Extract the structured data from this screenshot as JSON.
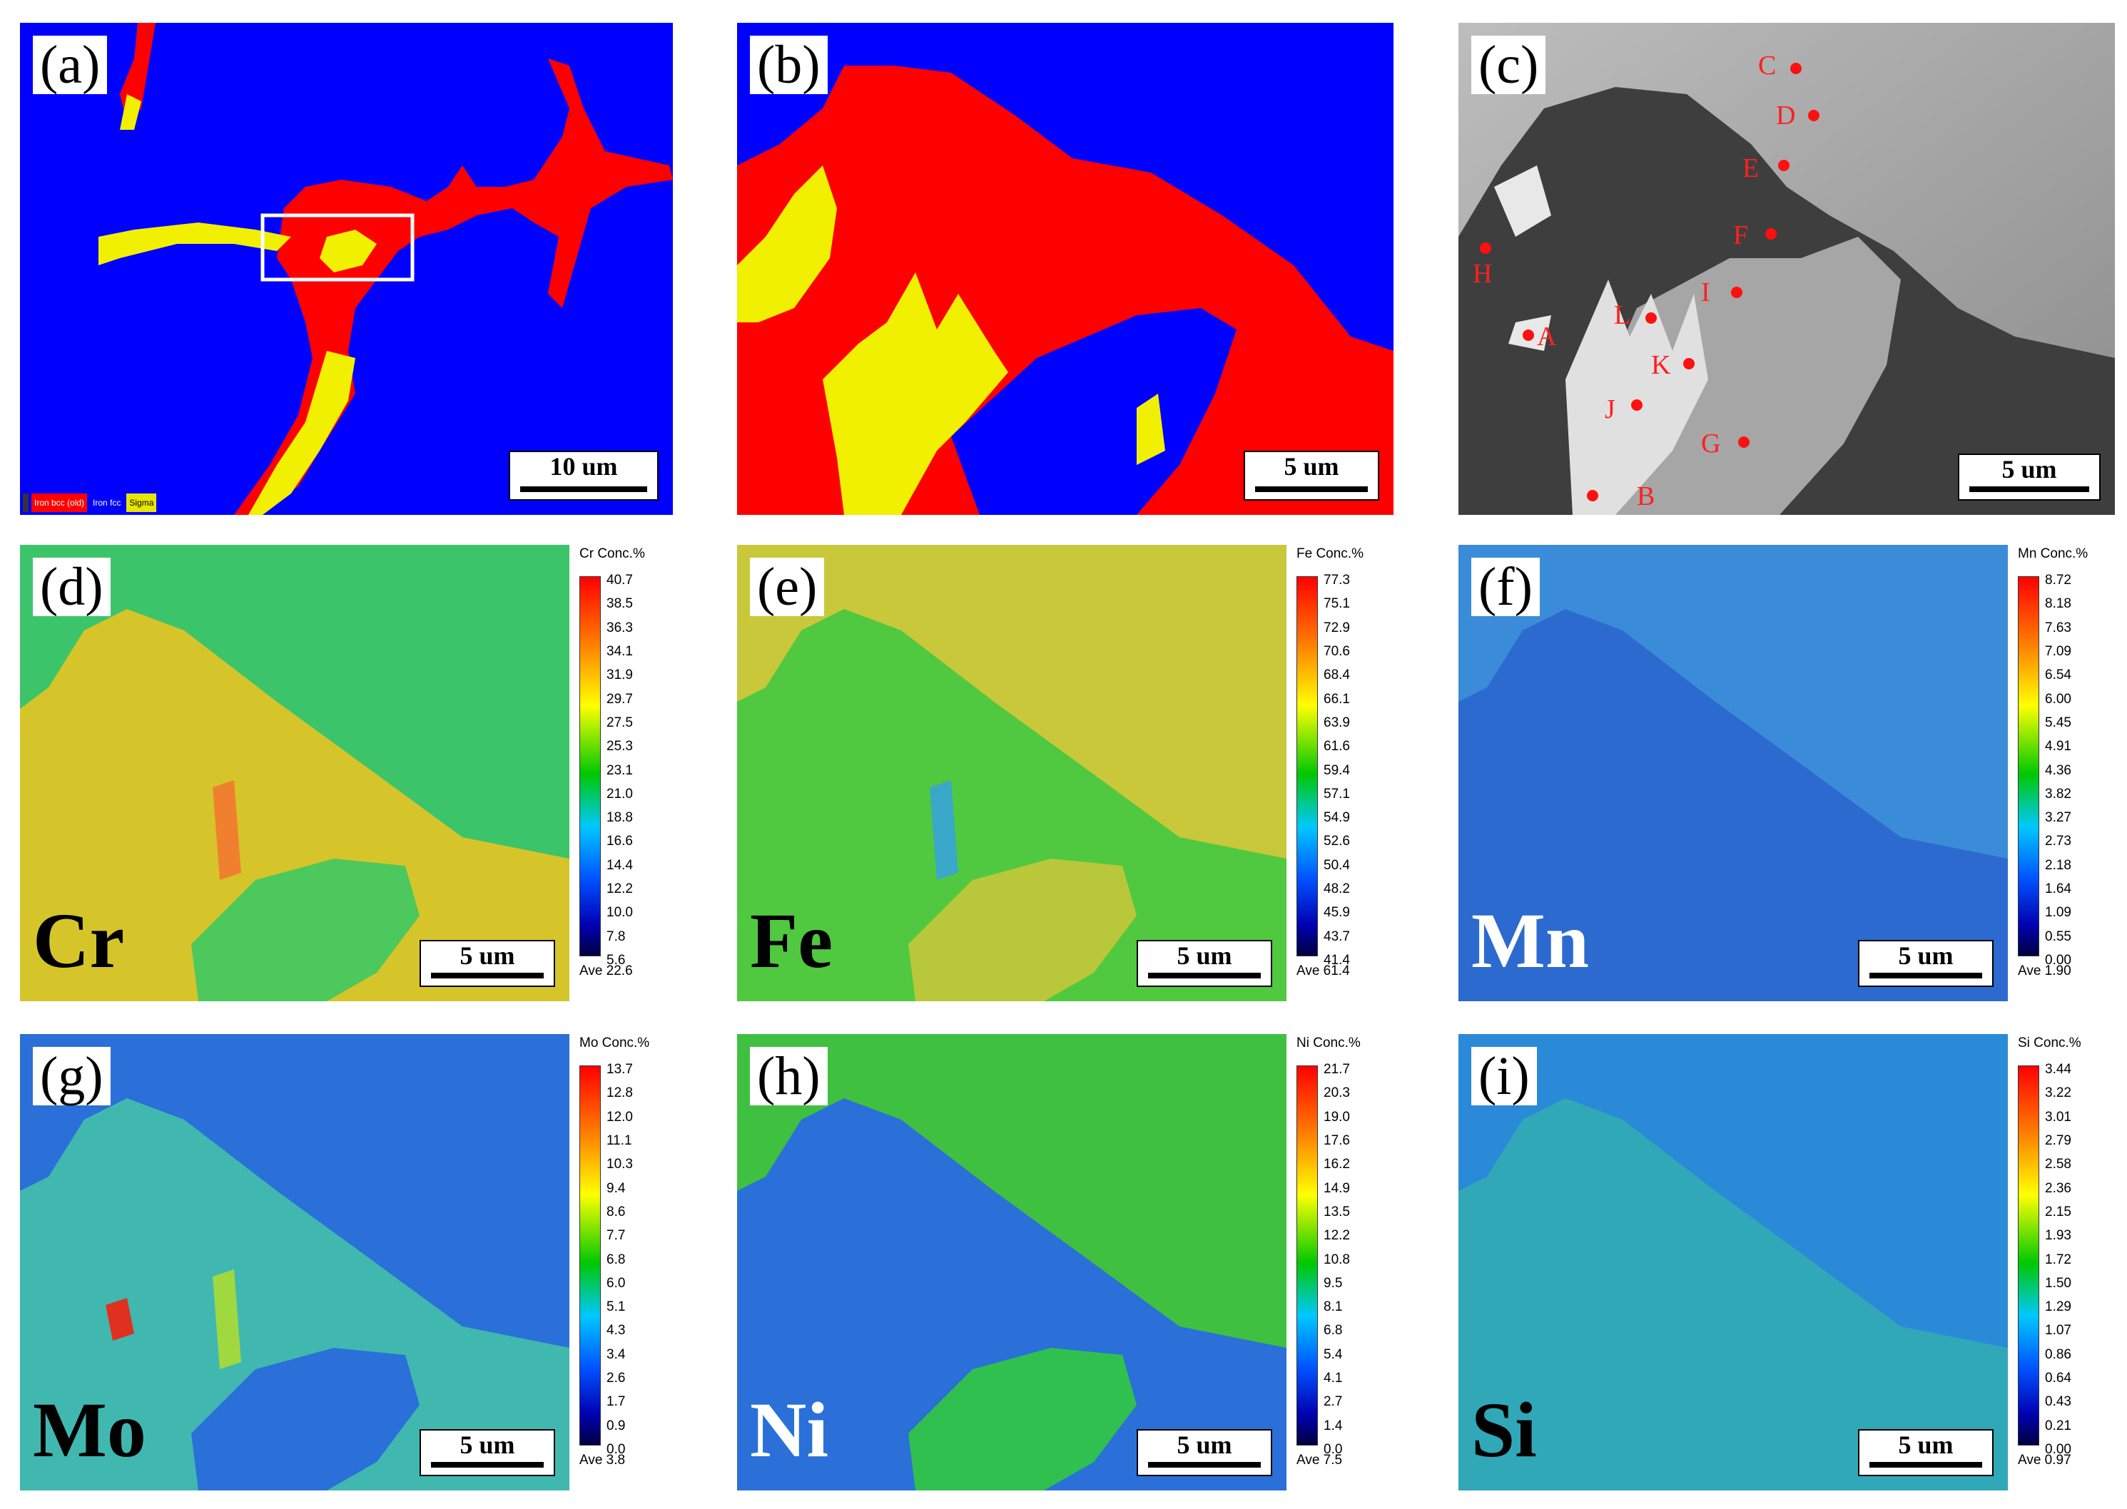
{
  "panels": {
    "a": {
      "letter": "(a)",
      "scale": "10 um",
      "legend": [
        {
          "label": "",
          "color": "#333333"
        },
        {
          "label": "Iron bcc (old)",
          "color": "#ff0000"
        },
        {
          "label": "Iron fcc",
          "color": "#0000ff"
        },
        {
          "label": "Sigma",
          "color": "#e6e600"
        }
      ]
    },
    "b": {
      "letter": "(b)",
      "scale": "5 um"
    },
    "c": {
      "letter": "(c)",
      "scale": "5 um",
      "points": [
        "C",
        "D",
        "E",
        "F",
        "H",
        "I",
        "L",
        "A",
        "K",
        "J",
        "G",
        "B"
      ]
    },
    "d": {
      "letter": "(d)",
      "scale": "5 um",
      "element": "Cr",
      "title": "Cr Conc.%",
      "ave": "Ave 22.6",
      "ticks": [
        "40.7",
        "38.5",
        "36.3",
        "34.1",
        "31.9",
        "29.7",
        "27.5",
        "25.3",
        "23.1",
        "21.0",
        "18.8",
        "16.6",
        "14.4",
        "12.2",
        "10.0",
        "7.8",
        "5.6"
      ]
    },
    "e": {
      "letter": "(e)",
      "scale": "5 um",
      "element": "Fe",
      "title": "Fe Conc.%",
      "ave": "Ave 61.4",
      "ticks": [
        "77.3",
        "75.1",
        "72.9",
        "70.6",
        "68.4",
        "66.1",
        "63.9",
        "61.6",
        "59.4",
        "57.1",
        "54.9",
        "52.6",
        "50.4",
        "48.2",
        "45.9",
        "43.7",
        "41.4"
      ]
    },
    "f": {
      "letter": "(f)",
      "scale": "5 um",
      "element": "Mn",
      "title": "Mn Conc.%",
      "ave": "Ave 1.90",
      "ticks": [
        "8.72",
        "8.18",
        "7.63",
        "7.09",
        "6.54",
        "6.00",
        "5.45",
        "4.91",
        "4.36",
        "3.82",
        "3.27",
        "2.73",
        "2.18",
        "1.64",
        "1.09",
        "0.55",
        "0.00"
      ]
    },
    "g": {
      "letter": "(g)",
      "scale": "5 um",
      "element": "Mo",
      "title": "Mo Conc.%",
      "ave": "Ave 3.8",
      "ticks": [
        "13.7",
        "12.8",
        "12.0",
        "11.1",
        "10.3",
        "9.4",
        "8.6",
        "7.7",
        "6.8",
        "6.0",
        "5.1",
        "4.3",
        "3.4",
        "2.6",
        "1.7",
        "0.9",
        "0.0"
      ]
    },
    "h": {
      "letter": "(h)",
      "scale": "5 um",
      "element": "Ni",
      "title": "Ni Conc.%",
      "ave": "Ave 7.5",
      "ticks": [
        "21.7",
        "20.3",
        "19.0",
        "17.6",
        "16.2",
        "14.9",
        "13.5",
        "12.2",
        "10.8",
        "9.5",
        "8.1",
        "6.8",
        "5.4",
        "4.1",
        "2.7",
        "1.4",
        "0.0"
      ]
    },
    "i": {
      "letter": "(i)",
      "scale": "5 um",
      "element": "Si",
      "title": "Si Conc.%",
      "ave": "Ave 0.97",
      "ticks": [
        "3.44",
        "3.22",
        "3.01",
        "2.79",
        "2.58",
        "2.36",
        "2.15",
        "1.93",
        "1.72",
        "1.50",
        "1.29",
        "1.07",
        "0.86",
        "0.64",
        "0.43",
        "0.21",
        "0.00"
      ]
    }
  },
  "colors": {
    "fcc": "#0000ff",
    "bcc": "#ff0000",
    "sigma": "#f0f000"
  }
}
